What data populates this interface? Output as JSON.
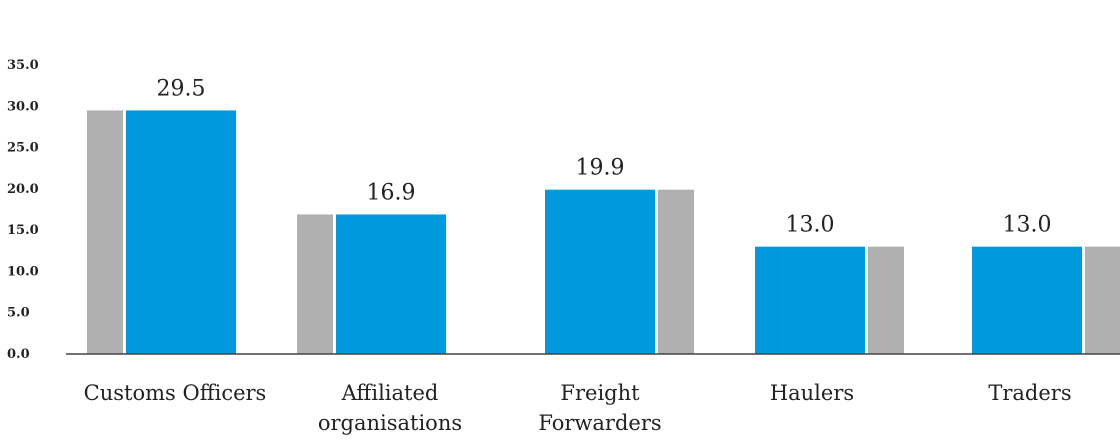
{
  "chart_data": {
    "type": "bar",
    "title": "",
    "xlabel": "",
    "ylabel": "",
    "ylim": [
      0,
      35
    ],
    "yticks": [
      "0.0",
      "5.0",
      "10.0",
      "15.0",
      "20.0",
      "25.0",
      "30.0",
      "35.0"
    ],
    "grid": false,
    "categories": [
      [
        "Customs Officers"
      ],
      [
        "Affiliated",
        "organisations"
      ],
      [
        "Freight",
        "Forwarders"
      ],
      [
        "Haulers"
      ],
      [
        "Traders"
      ]
    ],
    "series": [
      {
        "color": "#b0b0b0",
        "values": [
          29.5,
          16.9,
          19.9,
          13.0,
          13.0
        ]
      },
      {
        "color": "#0099dd",
        "values": [
          29.5,
          16.9,
          19.9,
          13.0,
          13.0
        ]
      }
    ],
    "data_labels": [
      "29.5",
      "16.9",
      "19.9",
      "13.0",
      "13.0"
    ],
    "gray_position": [
      "left",
      "left",
      "right",
      "right",
      "right"
    ]
  }
}
